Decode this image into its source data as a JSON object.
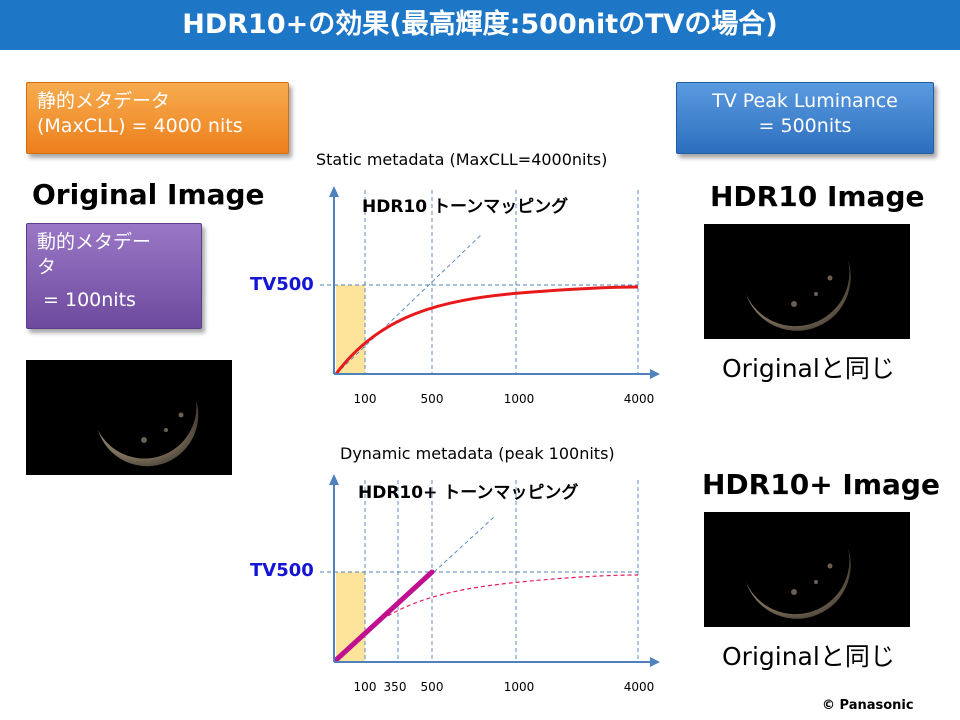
{
  "title": "HDR10+の効果(最高輝度:500nitのTVの場合)",
  "left": {
    "static_box": {
      "line1": "静的メタデータ",
      "line2": "(MaxCLL) = 4000 nits"
    },
    "heading": "Original Image",
    "dynamic_box": {
      "line1": "動的メタデー",
      "line2": "タ",
      "line3": " = 100nits"
    }
  },
  "right": {
    "tv_box": {
      "line1": "TV Peak Luminance",
      "line2": "= 500nits"
    },
    "hdr10_heading": "HDR10 Image",
    "hdr10_caption": "Originalと同じ",
    "hdr10plus_heading": "HDR10+ Image",
    "hdr10plus_caption": "Originalと同じ"
  },
  "chart_data": [
    {
      "type": "line",
      "title": "Static metadata (MaxCLL=4000nits)",
      "annotation": "HDR10 トーンマッピング",
      "y_marker_label": "TV500",
      "x_ticks": [
        "100",
        "500",
        "1000",
        "4000"
      ],
      "colors": {
        "curve": "#e8191b",
        "guide": "#4f81bd",
        "highlight": "#fde49a"
      }
    },
    {
      "type": "line",
      "title": "Dynamic metadata (peak 100nits)",
      "annotation": "HDR10+ トーンマッピング",
      "y_marker_label": "TV500",
      "x_ticks": [
        "100",
        "350",
        "500",
        "1000",
        "4000"
      ],
      "colors": {
        "curve": "#c0108f",
        "dashed_curve": "#e8195a",
        "guide": "#4f81bd",
        "highlight": "#fde49a"
      }
    }
  ],
  "footer": "© Panasonic"
}
